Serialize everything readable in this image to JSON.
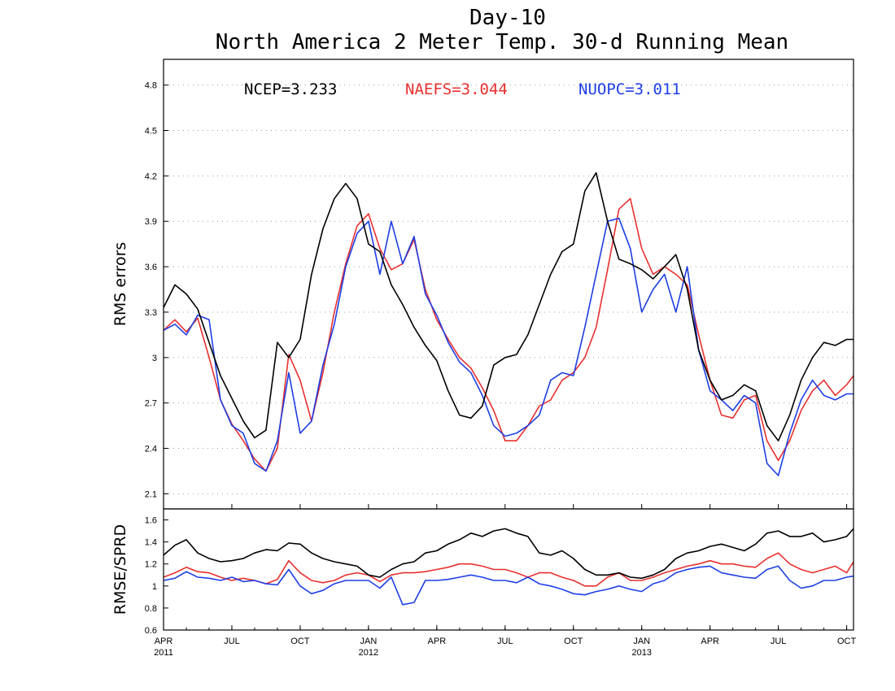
{
  "title": "Day-10",
  "subtitle": "North America 2 Meter Temp. 30-d Running Mean",
  "colors": {
    "NCEP": "#000000",
    "NAEFS": "#e8302f",
    "NUOPC": "#1e3ee6"
  },
  "legend": [
    {
      "key": "NCEP",
      "text": "NCEP=3.233"
    },
    {
      "key": "NAEFS",
      "text": "NAEFS=3.044"
    },
    {
      "key": "NUOPC",
      "text": "NUOPC=3.011"
    }
  ],
  "x_ticks": [
    {
      "month": 0,
      "label": "APR",
      "year": "2011"
    },
    {
      "month": 3,
      "label": "JUL",
      "year": ""
    },
    {
      "month": 6,
      "label": "OCT",
      "year": ""
    },
    {
      "month": 9,
      "label": "JAN",
      "year": "2012"
    },
    {
      "month": 12,
      "label": "APR",
      "year": ""
    },
    {
      "month": 15,
      "label": "JUL",
      "year": ""
    },
    {
      "month": 18,
      "label": "OCT",
      "year": ""
    },
    {
      "month": 21,
      "label": "JAN",
      "year": "2013"
    },
    {
      "month": 24,
      "label": "APR",
      "year": ""
    },
    {
      "month": 27,
      "label": "JUL",
      "year": ""
    },
    {
      "month": 30,
      "label": "OCT",
      "year": ""
    }
  ],
  "chart_data": [
    {
      "type": "line",
      "ylabel": "RMS errors",
      "ylim": [
        2.0,
        4.97
      ],
      "xlim": [
        0,
        30.3
      ],
      "x_unit": "months since APR 2011",
      "yticks": [
        2.1,
        2.4,
        2.7,
        3.0,
        3.3,
        3.6,
        3.9,
        4.2,
        4.5,
        4.8
      ],
      "ytick_labels": [
        "2.1",
        "2.4",
        "2.7",
        "3",
        "3.3",
        "3.6",
        "3.9",
        "4.2",
        "4.5",
        "4.8"
      ],
      "grid": true,
      "x": [
        0,
        0.5,
        1,
        1.5,
        2,
        2.5,
        3,
        3.5,
        4,
        4.5,
        5,
        5.5,
        6,
        6.5,
        7,
        7.5,
        8,
        8.5,
        9,
        9.5,
        10,
        10.5,
        11,
        11.5,
        12,
        12.5,
        13,
        13.5,
        14,
        14.5,
        15,
        15.5,
        16,
        16.5,
        17,
        17.5,
        18,
        18.5,
        19,
        19.5,
        20,
        20.5,
        21,
        21.5,
        22,
        22.5,
        23,
        23.5,
        24,
        24.5,
        25,
        25.5,
        26,
        26.5,
        27,
        27.5,
        28,
        28.5,
        29,
        29.5,
        30,
        30.3
      ],
      "series": [
        {
          "name": "NCEP",
          "values": [
            3.33,
            3.48,
            3.42,
            3.32,
            3.1,
            2.88,
            2.73,
            2.58,
            2.47,
            2.52,
            3.1,
            3.0,
            3.12,
            3.55,
            3.85,
            4.05,
            4.15,
            4.05,
            3.75,
            3.7,
            3.48,
            3.35,
            3.2,
            3.08,
            2.98,
            2.78,
            2.62,
            2.6,
            2.68,
            2.95,
            3.0,
            3.02,
            3.15,
            3.35,
            3.55,
            3.7,
            3.75,
            4.1,
            4.22,
            3.9,
            3.65,
            3.62,
            3.58,
            3.52,
            3.6,
            3.68,
            3.45,
            3.05,
            2.85,
            2.72,
            2.75,
            2.82,
            2.78,
            2.55,
            2.45,
            2.62,
            2.85,
            3.0,
            3.1,
            3.08,
            3.12,
            3.12
          ]
        },
        {
          "name": "NAEFS",
          "values": [
            3.18,
            3.25,
            3.17,
            3.26,
            3.0,
            2.72,
            2.56,
            2.45,
            2.33,
            2.25,
            2.4,
            3.02,
            2.85,
            2.58,
            2.9,
            3.3,
            3.62,
            3.87,
            3.95,
            3.72,
            3.58,
            3.62,
            3.78,
            3.45,
            3.25,
            3.12,
            3.0,
            2.93,
            2.8,
            2.65,
            2.45,
            2.45,
            2.55,
            2.68,
            2.72,
            2.85,
            2.9,
            3.0,
            3.2,
            3.58,
            3.98,
            4.05,
            3.72,
            3.55,
            3.6,
            3.55,
            3.48,
            3.15,
            2.85,
            2.62,
            2.6,
            2.72,
            2.75,
            2.45,
            2.32,
            2.45,
            2.65,
            2.78,
            2.85,
            2.75,
            2.82,
            2.88
          ]
        },
        {
          "name": "NUOPC",
          "values": [
            3.18,
            3.22,
            3.15,
            3.28,
            3.25,
            2.72,
            2.55,
            2.5,
            2.3,
            2.25,
            2.45,
            2.9,
            2.5,
            2.58,
            2.95,
            3.22,
            3.6,
            3.82,
            3.9,
            3.55,
            3.9,
            3.62,
            3.8,
            3.42,
            3.28,
            3.1,
            2.97,
            2.9,
            2.75,
            2.55,
            2.48,
            2.5,
            2.55,
            2.62,
            2.85,
            2.9,
            2.88,
            3.2,
            3.55,
            3.9,
            3.92,
            3.72,
            3.3,
            3.45,
            3.55,
            3.3,
            3.6,
            3.05,
            2.78,
            2.72,
            2.65,
            2.75,
            2.7,
            2.3,
            2.22,
            2.5,
            2.72,
            2.85,
            2.75,
            2.72,
            2.76,
            2.76
          ]
        }
      ]
    },
    {
      "type": "line",
      "ylabel": "RMSE/SPRD",
      "ylim": [
        0.6,
        1.7
      ],
      "xlim": [
        0,
        30.3
      ],
      "x_unit": "months since APR 2011",
      "yticks": [
        0.6,
        0.8,
        1.0,
        1.2,
        1.4,
        1.6
      ],
      "ytick_labels": [
        "0.6",
        "0.8",
        "1",
        "1.2",
        "1.4",
        "1.6"
      ],
      "grid": false,
      "x": [
        0,
        0.5,
        1,
        1.5,
        2,
        2.5,
        3,
        3.5,
        4,
        4.5,
        5,
        5.5,
        6,
        6.5,
        7,
        7.5,
        8,
        8.5,
        9,
        9.5,
        10,
        10.5,
        11,
        11.5,
        12,
        12.5,
        13,
        13.5,
        14,
        14.5,
        15,
        15.5,
        16,
        16.5,
        17,
        17.5,
        18,
        18.5,
        19,
        19.5,
        20,
        20.5,
        21,
        21.5,
        22,
        22.5,
        23,
        23.5,
        24,
        24.5,
        25,
        25.5,
        26,
        26.5,
        27,
        27.5,
        28,
        28.5,
        29,
        29.5,
        30,
        30.3
      ],
      "series": [
        {
          "name": "NCEP",
          "values": [
            1.28,
            1.37,
            1.42,
            1.3,
            1.25,
            1.22,
            1.23,
            1.25,
            1.3,
            1.33,
            1.32,
            1.39,
            1.38,
            1.3,
            1.25,
            1.22,
            1.2,
            1.18,
            1.1,
            1.08,
            1.15,
            1.2,
            1.22,
            1.3,
            1.32,
            1.38,
            1.42,
            1.48,
            1.45,
            1.5,
            1.52,
            1.48,
            1.45,
            1.3,
            1.28,
            1.32,
            1.25,
            1.15,
            1.1,
            1.1,
            1.12,
            1.08,
            1.07,
            1.1,
            1.15,
            1.25,
            1.3,
            1.32,
            1.36,
            1.38,
            1.35,
            1.32,
            1.38,
            1.48,
            1.5,
            1.45,
            1.45,
            1.48,
            1.4,
            1.42,
            1.45,
            1.52
          ]
        },
        {
          "name": "NAEFS",
          "values": [
            1.08,
            1.12,
            1.17,
            1.13,
            1.12,
            1.08,
            1.05,
            1.07,
            1.05,
            1.02,
            1.06,
            1.23,
            1.12,
            1.05,
            1.03,
            1.05,
            1.1,
            1.12,
            1.1,
            1.04,
            1.1,
            1.12,
            1.12,
            1.13,
            1.15,
            1.17,
            1.2,
            1.2,
            1.18,
            1.15,
            1.15,
            1.12,
            1.08,
            1.12,
            1.12,
            1.08,
            1.05,
            1.0,
            1.0,
            1.08,
            1.12,
            1.05,
            1.05,
            1.08,
            1.12,
            1.15,
            1.18,
            1.2,
            1.23,
            1.2,
            1.2,
            1.18,
            1.17,
            1.25,
            1.3,
            1.2,
            1.15,
            1.12,
            1.15,
            1.18,
            1.12,
            1.22
          ]
        },
        {
          "name": "NUOPC",
          "values": [
            1.05,
            1.07,
            1.13,
            1.08,
            1.07,
            1.05,
            1.08,
            1.04,
            1.05,
            1.02,
            1.01,
            1.15,
            1.0,
            0.93,
            0.96,
            1.02,
            1.05,
            1.05,
            1.05,
            0.98,
            1.08,
            0.83,
            0.85,
            1.05,
            1.05,
            1.06,
            1.08,
            1.1,
            1.08,
            1.05,
            1.05,
            1.03,
            1.08,
            1.02,
            1.0,
            0.97,
            0.93,
            0.92,
            0.95,
            0.97,
            1.0,
            0.97,
            0.95,
            1.02,
            1.05,
            1.12,
            1.15,
            1.17,
            1.18,
            1.12,
            1.1,
            1.08,
            1.07,
            1.15,
            1.18,
            1.05,
            0.98,
            1.0,
            1.05,
            1.05,
            1.08,
            1.09
          ]
        }
      ]
    }
  ]
}
